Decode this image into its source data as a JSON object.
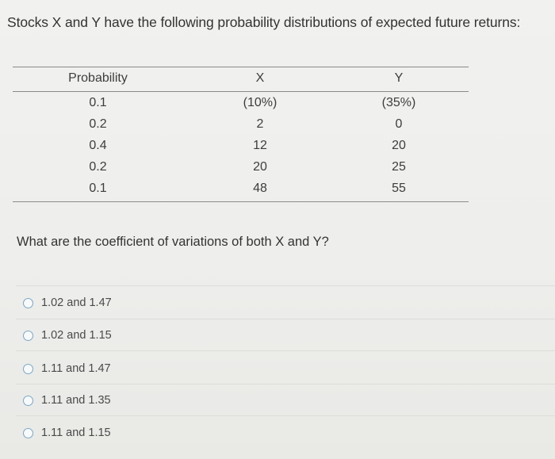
{
  "question": "Stocks X and Y have the following probability distributions of expected future returns:",
  "table": {
    "headers": [
      "Probability",
      "X",
      "Y"
    ],
    "rows": [
      [
        "0.1",
        "(10%)",
        "(35%)"
      ],
      [
        "0.2",
        "2",
        "0"
      ],
      [
        "0.4",
        "12",
        "20"
      ],
      [
        "0.2",
        "20",
        "25"
      ],
      [
        "0.1",
        "48",
        "55"
      ]
    ]
  },
  "prompt": "What are the coefficient of variations of both X and Y?",
  "options": [
    "1.02 and 1.47",
    "1.02 and 1.15",
    "1.11 and 1.47",
    "1.11 and 1.35",
    "1.11 and 1.15"
  ],
  "colors": {
    "radio_border": "#7da7c4",
    "rule": "#8a8a8a"
  }
}
